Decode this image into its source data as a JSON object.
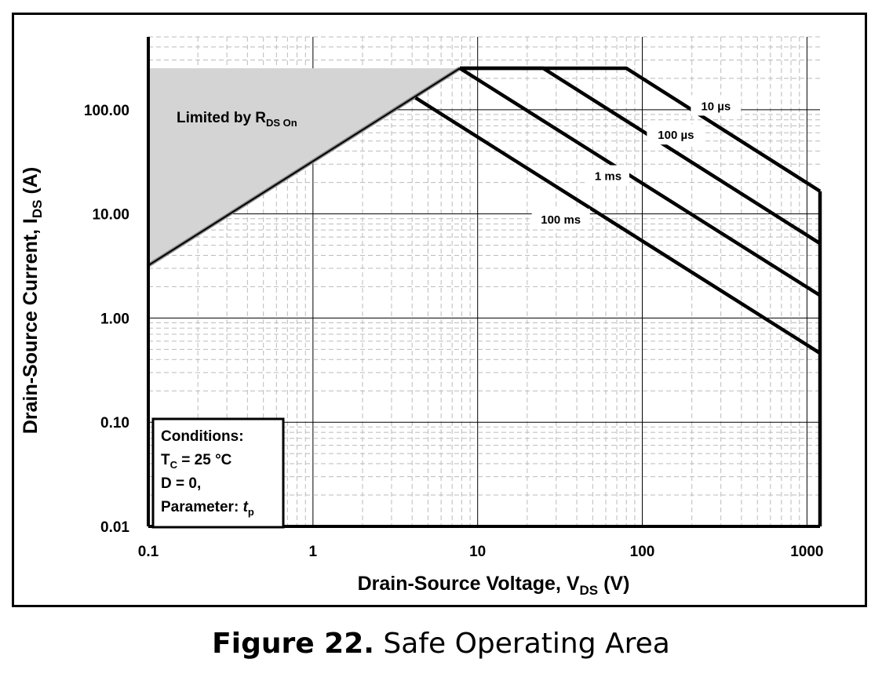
{
  "figure": {
    "caption_bold": "Figure 22.",
    "caption_text": "Safe Operating Area"
  },
  "chart_data": {
    "type": "line",
    "xlabel": "Drain-Source Voltage, V",
    "xlabel_sub": "DS",
    "xlabel_suffix": " (V)",
    "ylabel": "Drain-Source Current, I",
    "ylabel_sub": "DS",
    "ylabel_suffix": " (A)",
    "x_scale": "log",
    "y_scale": "log",
    "xlim": [
      0.1,
      1200
    ],
    "ylim": [
      0.01,
      500
    ],
    "x_ticks": [
      {
        "value": 0.1,
        "label": "0.1"
      },
      {
        "value": 1,
        "label": "1"
      },
      {
        "value": 10,
        "label": "10"
      },
      {
        "value": 100,
        "label": "100"
      },
      {
        "value": 1000,
        "label": "1000"
      }
    ],
    "y_ticks": [
      {
        "value": 0.01,
        "label": "0.01"
      },
      {
        "value": 0.1,
        "label": "0.10"
      },
      {
        "value": 1,
        "label": "1.00"
      },
      {
        "value": 10,
        "label": "10.00"
      },
      {
        "value": 100,
        "label": "100.00"
      }
    ],
    "grid": true,
    "rds_on_region": {
      "label": "Limited by R",
      "label_sub": "DS On",
      "points": [
        [
          0.1,
          3.2
        ],
        [
          7.8,
          250
        ]
      ]
    },
    "series": [
      {
        "name": "10 µs",
        "points": [
          [
            7.8,
            250
          ],
          [
            80,
            250
          ],
          [
            1200,
            16.5
          ]
        ]
      },
      {
        "name": "100 µs",
        "points": [
          [
            7.8,
            250
          ],
          [
            25,
            250
          ],
          [
            1200,
            5.2
          ]
        ]
      },
      {
        "name": "1 ms",
        "points": [
          [
            7.8,
            250
          ],
          [
            1200,
            1.65
          ]
        ]
      },
      {
        "name": "100 ms",
        "points": [
          [
            4.2,
            130
          ],
          [
            1200,
            0.46
          ]
        ]
      }
    ],
    "series_labels": [
      {
        "text": "10 µs",
        "x": 280,
        "y": 108
      },
      {
        "text": "100 µs",
        "x": 160,
        "y": 57
      },
      {
        "text": "1 ms",
        "x": 62,
        "y": 23
      },
      {
        "text": "100 ms",
        "x": 32,
        "y": 8.8
      }
    ],
    "vertical_limit": {
      "x": 1200,
      "y_top": 16.5,
      "y_bottom": 0.01
    },
    "conditions": {
      "title": "Conditions:",
      "line1_prefix": "T",
      "line1_sub": "C",
      "line1_suffix": " = 25 °C",
      "line2": "D = 0,",
      "line3_prefix": "Parameter:  ",
      "line3_italic": "t",
      "line3_sub": "p"
    }
  }
}
